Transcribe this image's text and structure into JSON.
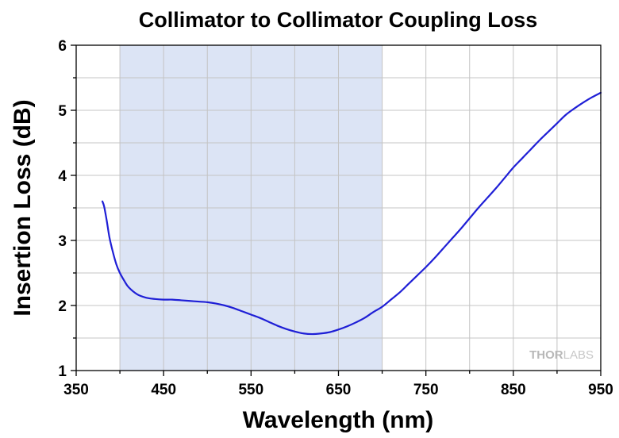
{
  "chart_data": {
    "type": "line",
    "title": "Collimator to Collimator Coupling Loss",
    "xlabel": "Wavelength (nm)",
    "ylabel": "Insertion Loss (dB)",
    "xlim": [
      350,
      950
    ],
    "ylim": [
      1,
      6
    ],
    "xticks": [
      350,
      450,
      550,
      650,
      750,
      850,
      950
    ],
    "yticks": [
      1,
      2,
      3,
      4,
      5,
      6
    ],
    "xtick_labels": [
      "350",
      "450",
      "550",
      "650",
      "750",
      "850",
      "950"
    ],
    "ytick_labels": [
      "1",
      "2",
      "3",
      "4",
      "5",
      "6"
    ],
    "x_minor_step": 50,
    "y_minor_step": 0.5,
    "grid": true,
    "shaded_region": {
      "x_start": 400,
      "x_end": 700,
      "color": "#dce4f5"
    },
    "series": [
      {
        "color": "#1f1fd6",
        "x": [
          380,
          382,
          385,
          388,
          392,
          396,
          400,
          405,
          410,
          420,
          430,
          440,
          450,
          460,
          470,
          480,
          490,
          500,
          510,
          520,
          530,
          540,
          550,
          560,
          570,
          580,
          590,
          600,
          610,
          620,
          630,
          640,
          650,
          660,
          670,
          680,
          690,
          700,
          710,
          720,
          730,
          740,
          750,
          760,
          770,
          780,
          790,
          800,
          810,
          820,
          830,
          840,
          850,
          860,
          870,
          880,
          890,
          900,
          910,
          920,
          930,
          940,
          950
        ],
        "y": [
          3.6,
          3.52,
          3.3,
          3.05,
          2.82,
          2.63,
          2.5,
          2.38,
          2.28,
          2.17,
          2.12,
          2.1,
          2.09,
          2.09,
          2.08,
          2.07,
          2.06,
          2.05,
          2.03,
          2.0,
          1.96,
          1.91,
          1.86,
          1.81,
          1.75,
          1.69,
          1.64,
          1.6,
          1.57,
          1.56,
          1.57,
          1.59,
          1.63,
          1.68,
          1.74,
          1.81,
          1.9,
          1.98,
          2.09,
          2.2,
          2.33,
          2.46,
          2.59,
          2.73,
          2.88,
          3.03,
          3.18,
          3.34,
          3.5,
          3.65,
          3.8,
          3.96,
          4.12,
          4.26,
          4.4,
          4.54,
          4.67,
          4.8,
          4.93,
          5.03,
          5.12,
          5.2,
          5.27
        ]
      }
    ]
  },
  "watermark": {
    "bold_part": "THOR",
    "light_part": "LABS"
  }
}
